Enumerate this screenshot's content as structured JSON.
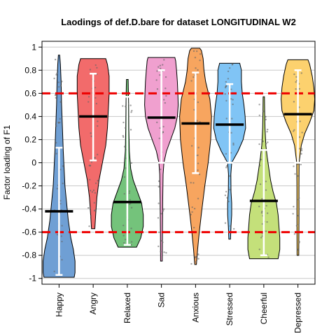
{
  "chart_data": {
    "type": "violin",
    "title": "Laodings of def.D.bare for dataset LONGITUDINAL W2",
    "xlabel": "",
    "ylabel": "Factor loading of F1",
    "ylim": [
      -1.05,
      1.05
    ],
    "yticks": [
      -1,
      -0.8,
      -0.6,
      -0.4,
      -0.2,
      0,
      0.2,
      0.4,
      0.6,
      0.8,
      1
    ],
    "ytick_labels": [
      "-1",
      "-0.8",
      "-0.6",
      "-0.4",
      "-0.2",
      "0",
      "0.2",
      "0.4",
      "0.6",
      "0.8",
      "1"
    ],
    "grid": true,
    "reference_lines": [
      0.6,
      -0.6
    ],
    "reference_line_color": "#ee0000",
    "categories": [
      "Happy",
      "Angry",
      "Relaxed",
      "Sad",
      "Anxious",
      "Stressed",
      "Cheerful",
      "Depressed"
    ],
    "series": [
      {
        "color": "#6f9fd4",
        "range": [
          -0.99,
          0.93
        ],
        "median": -0.42,
        "whisker": [
          -0.97,
          0.13
        ],
        "density": [
          [
            -0.99,
            0.9
          ],
          [
            -0.95,
            0.95
          ],
          [
            -0.85,
            0.95
          ],
          [
            -0.75,
            0.85
          ],
          [
            -0.65,
            0.7
          ],
          [
            -0.5,
            0.55
          ],
          [
            -0.35,
            0.45
          ],
          [
            -0.2,
            0.35
          ],
          [
            -0.05,
            0.3
          ],
          [
            0.1,
            0.25
          ],
          [
            0.3,
            0.2
          ],
          [
            0.5,
            0.15
          ],
          [
            0.7,
            0.12
          ],
          [
            0.85,
            0.08
          ],
          [
            0.93,
            0.04
          ]
        ]
      },
      {
        "color": "#f26b6b",
        "range": [
          -0.57,
          0.9
        ],
        "median": 0.4,
        "whisker": [
          0.02,
          0.77
        ],
        "density": [
          [
            -0.57,
            0.1
          ],
          [
            -0.45,
            0.15
          ],
          [
            -0.3,
            0.22
          ],
          [
            -0.15,
            0.35
          ],
          [
            0.0,
            0.55
          ],
          [
            0.15,
            0.75
          ],
          [
            0.3,
            0.85
          ],
          [
            0.45,
            0.9
          ],
          [
            0.6,
            0.95
          ],
          [
            0.75,
            0.95
          ],
          [
            0.85,
            0.85
          ],
          [
            0.9,
            0.75
          ]
        ]
      },
      {
        "color": "#74c37b",
        "range": [
          -0.73,
          0.72
        ],
        "median": -0.34,
        "whisker": [
          -0.71,
          0.57
        ],
        "density": [
          [
            -0.73,
            0.55
          ],
          [
            -0.65,
            0.8
          ],
          [
            -0.55,
            0.95
          ],
          [
            -0.45,
            0.95
          ],
          [
            -0.35,
            0.85
          ],
          [
            -0.25,
            0.6
          ],
          [
            -0.15,
            0.35
          ],
          [
            -0.05,
            0.2
          ],
          [
            0.1,
            0.12
          ],
          [
            0.3,
            0.09
          ],
          [
            0.5,
            0.08
          ],
          [
            0.65,
            0.06
          ],
          [
            0.72,
            0.05
          ]
        ]
      },
      {
        "color": "#f0a0cf",
        "range": [
          -0.85,
          0.91
        ],
        "median": 0.39,
        "whisker": [
          0.0,
          0.8
        ],
        "density": [
          [
            -0.85,
            0.05
          ],
          [
            -0.6,
            0.06
          ],
          [
            -0.3,
            0.08
          ],
          [
            -0.1,
            0.1
          ],
          [
            0.0,
            0.15
          ],
          [
            0.1,
            0.3
          ],
          [
            0.2,
            0.55
          ],
          [
            0.3,
            0.8
          ],
          [
            0.4,
            0.95
          ],
          [
            0.5,
            1.0
          ],
          [
            0.6,
            0.98
          ],
          [
            0.7,
            0.95
          ],
          [
            0.8,
            0.9
          ],
          [
            0.88,
            0.85
          ],
          [
            0.91,
            0.8
          ]
        ]
      },
      {
        "color": "#f7a55f",
        "range": [
          -0.88,
          0.99
        ],
        "median": 0.34,
        "whisker": [
          -0.09,
          0.78
        ],
        "density": [
          [
            -0.88,
            0.05
          ],
          [
            -0.75,
            0.12
          ],
          [
            -0.6,
            0.22
          ],
          [
            -0.4,
            0.38
          ],
          [
            -0.2,
            0.55
          ],
          [
            0.0,
            0.75
          ],
          [
            0.2,
            0.9
          ],
          [
            0.4,
            0.95
          ],
          [
            0.55,
            0.85
          ],
          [
            0.7,
            0.6
          ],
          [
            0.8,
            0.5
          ],
          [
            0.9,
            0.45
          ],
          [
            0.97,
            0.35
          ],
          [
            0.99,
            0.25
          ]
        ]
      },
      {
        "color": "#80c4f5",
        "range": [
          -0.66,
          0.86
        ],
        "median": 0.33,
        "whisker": [
          0.0,
          0.68
        ],
        "density": [
          [
            -0.66,
            0.05
          ],
          [
            -0.55,
            0.08
          ],
          [
            -0.45,
            0.12
          ],
          [
            -0.35,
            0.12
          ],
          [
            -0.25,
            0.08
          ],
          [
            -0.1,
            0.07
          ],
          [
            0.0,
            0.12
          ],
          [
            0.1,
            0.5
          ],
          [
            0.2,
            0.8
          ],
          [
            0.3,
            0.95
          ],
          [
            0.4,
            0.92
          ],
          [
            0.5,
            0.85
          ],
          [
            0.6,
            0.75
          ],
          [
            0.7,
            0.7
          ],
          [
            0.8,
            0.7
          ],
          [
            0.86,
            0.6
          ]
        ]
      },
      {
        "color": "#c4e07a",
        "range": [
          -0.83,
          0.57
        ],
        "median": -0.33,
        "whisker": [
          -0.8,
          0.11
        ],
        "density": [
          [
            -0.83,
            0.85
          ],
          [
            -0.75,
            0.95
          ],
          [
            -0.65,
            0.95
          ],
          [
            -0.55,
            0.9
          ],
          [
            -0.45,
            0.85
          ],
          [
            -0.35,
            0.75
          ],
          [
            -0.25,
            0.55
          ],
          [
            -0.15,
            0.4
          ],
          [
            -0.05,
            0.3
          ],
          [
            0.05,
            0.2
          ],
          [
            0.15,
            0.12
          ],
          [
            0.3,
            0.07
          ],
          [
            0.45,
            0.05
          ],
          [
            0.57,
            0.04
          ]
        ]
      },
      {
        "color": "#fcd16e",
        "range": [
          -0.8,
          0.89
        ],
        "median": 0.42,
        "whisker": [
          0.0,
          0.8
        ],
        "density": [
          [
            -0.8,
            0.05
          ],
          [
            -0.5,
            0.06
          ],
          [
            -0.2,
            0.06
          ],
          [
            0.0,
            0.07
          ],
          [
            0.15,
            0.2
          ],
          [
            0.25,
            0.4
          ],
          [
            0.35,
            0.7
          ],
          [
            0.45,
            0.95
          ],
          [
            0.55,
            1.0
          ],
          [
            0.65,
            0.95
          ],
          [
            0.75,
            0.85
          ],
          [
            0.85,
            0.7
          ],
          [
            0.89,
            0.6
          ]
        ]
      }
    ]
  }
}
